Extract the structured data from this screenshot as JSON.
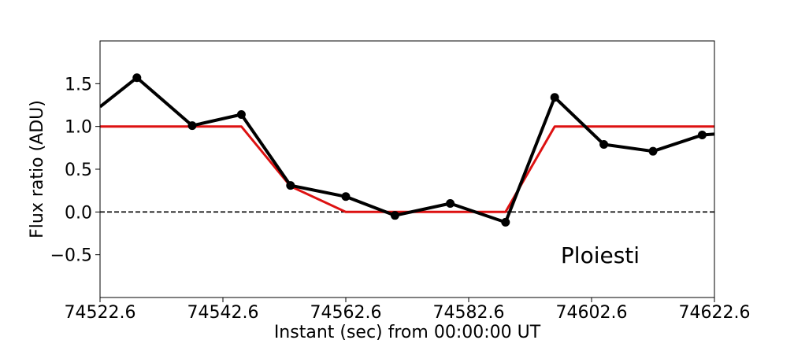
{
  "chart_data": {
    "type": "line",
    "xlabel": "Instant (sec) from 00:00:00 UT",
    "ylabel": "Flux ratio (ADU)",
    "xlim": [
      74522.6,
      74622.6
    ],
    "ylim": [
      -1.0,
      2.0
    ],
    "x_ticks": [
      74522.6,
      74542.6,
      74562.6,
      74582.6,
      74602.6,
      74622.6
    ],
    "x_tick_labels": [
      "74522.6",
      "74542.6",
      "74562.6",
      "74582.6",
      "74602.6",
      "74622.6"
    ],
    "y_ticks": [
      -0.5,
      0.0,
      0.5,
      1.0,
      1.5
    ],
    "y_tick_labels": [
      "−0.5",
      "0.0",
      "0.5",
      "1.0",
      "1.5"
    ],
    "annotation": "Ploiesti",
    "reference_line": {
      "y": 0.0,
      "style": "dashed",
      "color": "#000000"
    },
    "series": [
      {
        "color": "#000000",
        "marker": "circle",
        "x": [
          74522.6,
          74528.6,
          74537.6,
          74545.6,
          74553.6,
          74562.6,
          74570.6,
          74579.6,
          74588.6,
          74596.6,
          74604.6,
          74612.6,
          74620.6,
          74622.6
        ],
        "y": [
          1.23,
          1.57,
          1.01,
          1.14,
          0.31,
          0.18,
          -0.04,
          0.1,
          -0.12,
          1.34,
          0.79,
          0.71,
          0.9,
          0.91
        ]
      },
      {
        "color": "#dd1111",
        "marker": "none",
        "x": [
          74522.6,
          74545.6,
          74553.6,
          74562.6,
          74588.6,
          74596.6,
          74622.6
        ],
        "y": [
          1.0,
          1.0,
          0.3,
          0.0,
          0.0,
          1.0,
          1.0
        ]
      }
    ]
  }
}
